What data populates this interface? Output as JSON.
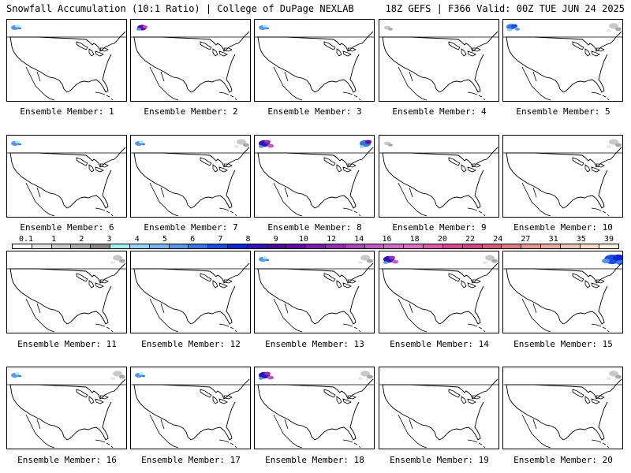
{
  "header": {
    "left": "Snowfall Accumulation (10:1 Ratio) | College of DuPage NEXLAB",
    "right": "18Z GEFS | F366 Valid: 00Z TUE JUN 24 2025"
  },
  "legend": {
    "labels": [
      "0.1",
      "1",
      "2",
      "3",
      "4",
      "5",
      "6",
      "7",
      "8",
      "9",
      "10",
      "12",
      "14",
      "16",
      "18",
      "20",
      "22",
      "24",
      "27",
      "31",
      "35",
      "39"
    ],
    "colors": [
      "#ffffff",
      "#e4e4e4",
      "#c8c8c8",
      "#a8a8a8",
      "#888888",
      "#a4f0ec",
      "#96d2f8",
      "#78b4ee",
      "#5a94e8",
      "#3a74e2",
      "#1c4edc",
      "#0a28d2",
      "#3214b4",
      "#4a0a9a",
      "#620aa2",
      "#7a1ca8",
      "#9230ae",
      "#a848b6",
      "#bc5cc0",
      "#cc6ec8",
      "#d870c4",
      "#dc5aa8",
      "#d44890",
      "#cc4882",
      "#d2607a",
      "#da7a82",
      "#e29690",
      "#e8ac9e",
      "#f0c4b4",
      "#f6dcc8",
      "#fbeede"
    ]
  },
  "members": [
    {
      "caption": "Ensemble Member: 1",
      "snow": [
        "blue-nw"
      ]
    },
    {
      "caption": "Ensemble Member: 2",
      "snow": [
        "purple-nw"
      ]
    },
    {
      "caption": "Ensemble Member: 3",
      "snow": [
        "blue-nw"
      ]
    },
    {
      "caption": "Ensemble Member: 4",
      "snow": [
        "gray-nw"
      ]
    },
    {
      "caption": "Ensemble Member: 5",
      "snow": [
        "blue-nw-heavy",
        "gray-ne"
      ]
    },
    {
      "caption": "Ensemble Member: 6",
      "snow": [
        "blue-nw"
      ]
    },
    {
      "caption": "Ensemble Member: 7",
      "snow": [
        "blue-nw",
        "gray-ne"
      ]
    },
    {
      "caption": "Ensemble Member: 8",
      "snow": [
        "purple-nw-heavy",
        "purple-ne"
      ]
    },
    {
      "caption": "Ensemble Member: 9",
      "snow": [
        "gray-nw"
      ]
    },
    {
      "caption": "Ensemble Member: 10",
      "snow": [
        "gray-ne"
      ]
    },
    {
      "caption": "Ensemble Member: 11",
      "snow": [
        "gray-ne"
      ]
    },
    {
      "caption": "Ensemble Member: 12",
      "snow": []
    },
    {
      "caption": "Ensemble Member: 13",
      "snow": [
        "blue-nw",
        "gray-ne"
      ]
    },
    {
      "caption": "Ensemble Member: 14",
      "snow": [
        "purple-nw-heavy",
        "gray-ne"
      ]
    },
    {
      "caption": "Ensemble Member: 15",
      "snow": [
        "blue-ne-heavy"
      ]
    },
    {
      "caption": "Ensemble Member: 16",
      "snow": [
        "blue-nw",
        "gray-ne"
      ]
    },
    {
      "caption": "Ensemble Member: 17",
      "snow": [
        "blue-nw"
      ]
    },
    {
      "caption": "Ensemble Member: 18",
      "snow": [
        "purple-nw-heavy",
        "gray-ne"
      ]
    },
    {
      "caption": "Ensemble Member: 19",
      "snow": []
    },
    {
      "caption": "Ensemble Member: 20",
      "snow": [
        "gray-ne"
      ]
    }
  ]
}
